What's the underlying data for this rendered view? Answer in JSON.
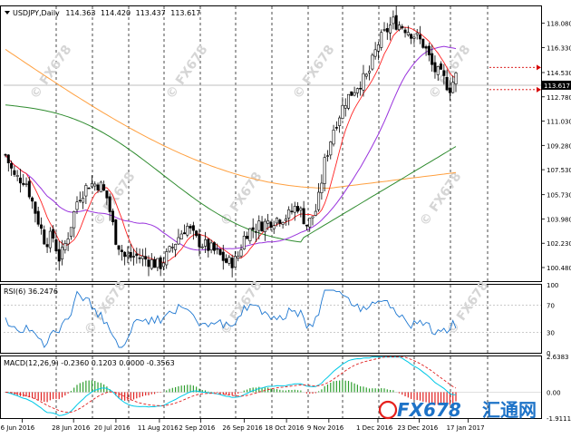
{
  "chart_data": [
    {
      "type": "candlestick",
      "title": "USDJPY,Daily",
      "ohlc": {
        "open": "114.363",
        "high": "114.420",
        "low": "113.437",
        "close": "113.617"
      },
      "ylim": [
        99.5,
        119.3
      ],
      "y_ticks": [
        "118.080",
        "116.330",
        "114.530",
        "112.780",
        "111.030",
        "109.280",
        "107.530",
        "105.730",
        "103.980",
        "102.230",
        "100.480"
      ],
      "current_price": "113.617",
      "x_ticks": [
        "6 Jun 2016",
        "28 Jun 2016",
        "20 Jul 2016",
        "11 Aug 2016",
        "2 Sep 2016",
        "26 Sep 2016",
        "18 Oct 2016",
        "9 Nov 2016",
        "1 Dec 2016",
        "23 Dec 2016",
        "17 Jan 2017"
      ],
      "grid": true,
      "series": [
        {
          "name": "",
          "type": "moving-average",
          "color": "#ffa040"
        },
        {
          "name": "",
          "type": "moving-average",
          "color": "#2e8b2e"
        },
        {
          "name": "",
          "type": "moving-average",
          "color": "#9933dd"
        },
        {
          "name": "",
          "type": "moving-average",
          "color": "#ff2222"
        }
      ],
      "colors": {
        "candle": "#000000",
        "price_marker": "#d60000"
      }
    },
    {
      "type": "line",
      "title": "RSI(6) 36.2476",
      "ylim": [
        0,
        100
      ],
      "y_ticks": [
        "100",
        "70",
        "30",
        "0"
      ],
      "levels": [
        70,
        30
      ],
      "last_value": 36.2476,
      "colors": {
        "line": "#1f78d1"
      }
    },
    {
      "type": "bar",
      "title": "MACD(12,26,9) -0.2360 0.1203 0.0000 -0.3563",
      "y_ticks": [
        "2.6383",
        "0.00",
        "-1.9111"
      ],
      "ylim": [
        -1.9111,
        2.6383
      ],
      "colors": {
        "positive": "#2e9e2e",
        "negative": "#e02020",
        "main_line": "#00c8e6",
        "signal_line": "#e02020"
      }
    }
  ],
  "watermarks": [
    "FX678",
    "FX678",
    "FX678",
    "FX678",
    "FX678",
    "FX678"
  ],
  "brand": {
    "name": "FX678",
    "cn": "汇通网",
    "color": "#1e73c8",
    "accent": "#e6201c"
  }
}
